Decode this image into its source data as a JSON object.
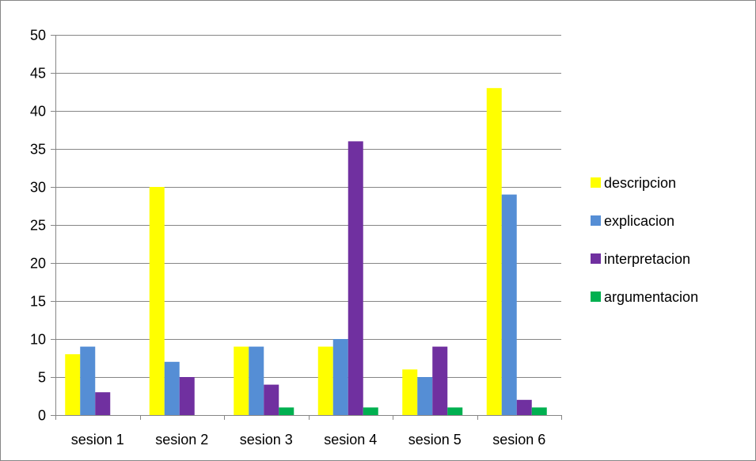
{
  "chart_data": {
    "type": "bar",
    "categories": [
      "sesion 1",
      "sesion 2",
      "sesion 3",
      "sesion 4",
      "sesion 5",
      "sesion 6"
    ],
    "series": [
      {
        "name": "descripcion",
        "color": "#FFFF00",
        "values": [
          8,
          30,
          9,
          9,
          6,
          43
        ]
      },
      {
        "name": "explicacion",
        "color": "#558ED5",
        "values": [
          9,
          7,
          9,
          10,
          5,
          29
        ]
      },
      {
        "name": "interpretacion",
        "color": "#7030A0",
        "values": [
          3,
          5,
          4,
          36,
          9,
          2
        ]
      },
      {
        "name": "argumentacion",
        "color": "#00B050",
        "values": [
          0,
          0,
          1,
          1,
          1,
          1
        ]
      }
    ],
    "ylim": [
      0,
      50
    ],
    "yticks": [
      0,
      5,
      10,
      15,
      20,
      25,
      30,
      35,
      40,
      45,
      50
    ],
    "grid": true,
    "legend_position": "right",
    "title": "",
    "xlabel": "",
    "ylabel": ""
  }
}
